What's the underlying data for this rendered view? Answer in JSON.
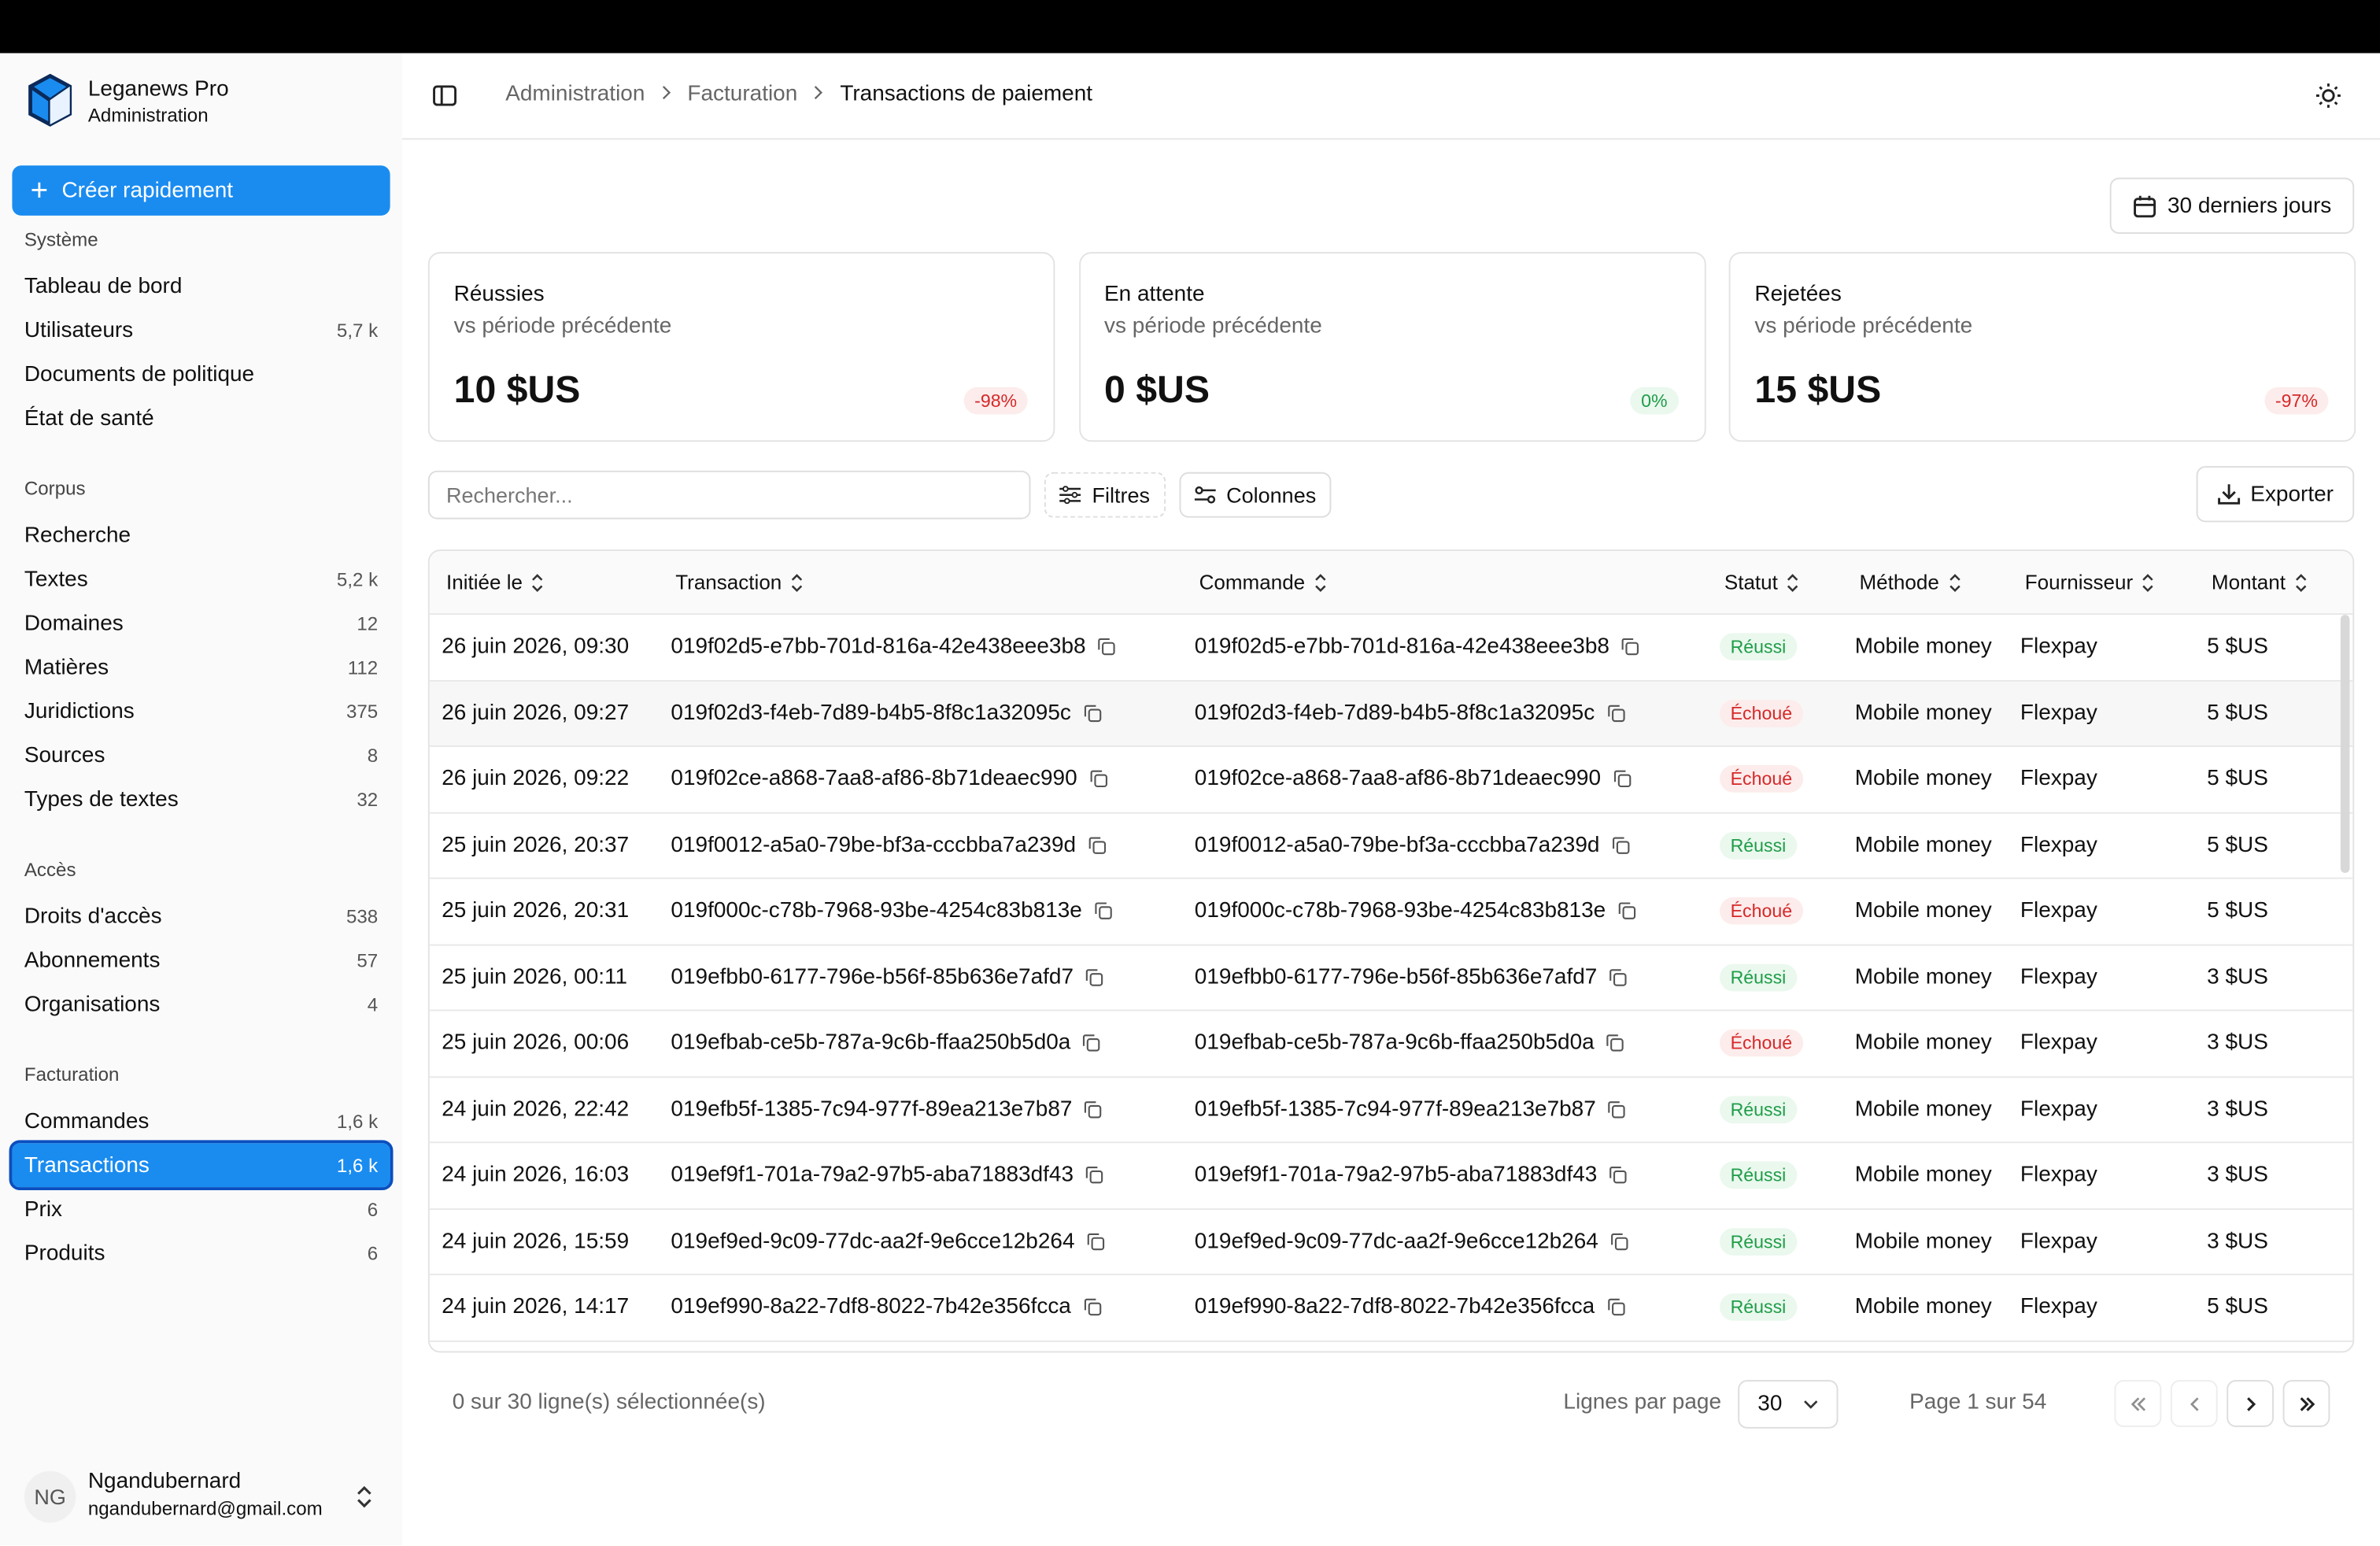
{
  "app": {
    "name": "Leganews Pro",
    "subtitle": "Administration"
  },
  "quick_create": "Créer rapidement",
  "nav": [
    {
      "section": "Système",
      "items": [
        {
          "label": "Tableau de bord"
        },
        {
          "label": "Utilisateurs",
          "count": "5,7 k"
        },
        {
          "label": "Documents de politique"
        },
        {
          "label": "État de santé"
        }
      ]
    },
    {
      "section": "Corpus",
      "items": [
        {
          "label": "Recherche"
        },
        {
          "label": "Textes",
          "count": "5,2 k"
        },
        {
          "label": "Domaines",
          "count": "12"
        },
        {
          "label": "Matières",
          "count": "112"
        },
        {
          "label": "Juridictions",
          "count": "375"
        },
        {
          "label": "Sources",
          "count": "8"
        },
        {
          "label": "Types de textes",
          "count": "32"
        }
      ]
    },
    {
      "section": "Accès",
      "items": [
        {
          "label": "Droits d'accès",
          "count": "538"
        },
        {
          "label": "Abonnements",
          "count": "57"
        },
        {
          "label": "Organisations",
          "count": "4"
        }
      ]
    },
    {
      "section": "Facturation",
      "items": [
        {
          "label": "Commandes",
          "count": "1,6 k"
        },
        {
          "label": "Transactions",
          "count": "1,6 k",
          "active": true
        },
        {
          "label": "Prix",
          "count": "6"
        },
        {
          "label": "Produits",
          "count": "6"
        }
      ]
    }
  ],
  "user": {
    "initials": "NG",
    "name": "Ngandubernard",
    "email": "ngandubernard@gmail.com"
  },
  "breadcrumb": [
    "Administration",
    "Facturation",
    "Transactions de paiement"
  ],
  "date_range": "30 derniers jours",
  "cards": [
    {
      "title": "Réussies",
      "subtitle": "vs période précédente",
      "value": "10 $US",
      "change": "-98%",
      "tone": "danger"
    },
    {
      "title": "En attente",
      "subtitle": "vs période précédente",
      "value": "0 $US",
      "change": "0%",
      "tone": "success"
    },
    {
      "title": "Rejetées",
      "subtitle": "vs période précédente",
      "value": "15 $US",
      "change": "-97%",
      "tone": "danger"
    }
  ],
  "search_placeholder": "Rechercher...",
  "buttons": {
    "filters": "Filtres",
    "columns": "Colonnes",
    "export": "Exporter"
  },
  "table": {
    "columns": [
      "Initiée le",
      "Transaction",
      "Commande",
      "Statut",
      "Méthode",
      "Fournisseur",
      "Montant"
    ],
    "rows": [
      [
        "26 juin 2026, 09:30",
        "019f02d5-e7bb-701d-816a-42e438eee3b8",
        "019f02d5-e7bb-701d-816a-42e438eee3b8",
        {
          "label": "Réussi",
          "tone": "success"
        },
        "Mobile money",
        "Flexpay",
        "5 $US"
      ],
      [
        "26 juin 2026, 09:27",
        "019f02d3-f4eb-7d89-b4b5-8f8c1a32095c",
        "019f02d3-f4eb-7d89-b4b5-8f8c1a32095c",
        {
          "label": "Échoué",
          "tone": "danger"
        },
        "Mobile money",
        "Flexpay",
        "5 $US"
      ],
      [
        "26 juin 2026, 09:22",
        "019f02ce-a868-7aa8-af86-8b71deaec990",
        "019f02ce-a868-7aa8-af86-8b71deaec990",
        {
          "label": "Échoué",
          "tone": "danger"
        },
        "Mobile money",
        "Flexpay",
        "5 $US"
      ],
      [
        "25 juin 2026, 20:37",
        "019f0012-a5a0-79be-bf3a-cccbba7a239d",
        "019f0012-a5a0-79be-bf3a-cccbba7a239d",
        {
          "label": "Réussi",
          "tone": "success"
        },
        "Mobile money",
        "Flexpay",
        "5 $US"
      ],
      [
        "25 juin 2026, 20:31",
        "019f000c-c78b-7968-93be-4254c83b813e",
        "019f000c-c78b-7968-93be-4254c83b813e",
        {
          "label": "Échoué",
          "tone": "danger"
        },
        "Mobile money",
        "Flexpay",
        "5 $US"
      ],
      [
        "25 juin 2026, 00:11",
        "019efbb0-6177-796e-b56f-85b636e7afd7",
        "019efbb0-6177-796e-b56f-85b636e7afd7",
        {
          "label": "Réussi",
          "tone": "success"
        },
        "Mobile money",
        "Flexpay",
        "3 $US"
      ],
      [
        "25 juin 2026, 00:06",
        "019efbab-ce5b-787a-9c6b-ffaa250b5d0a",
        "019efbab-ce5b-787a-9c6b-ffaa250b5d0a",
        {
          "label": "Échoué",
          "tone": "danger"
        },
        "Mobile money",
        "Flexpay",
        "3 $US"
      ],
      [
        "24 juin 2026, 22:42",
        "019efb5f-1385-7c94-977f-89ea213e7b87",
        "019efb5f-1385-7c94-977f-89ea213e7b87",
        {
          "label": "Réussi",
          "tone": "success"
        },
        "Mobile money",
        "Flexpay",
        "3 $US"
      ],
      [
        "24 juin 2026, 16:03",
        "019ef9f1-701a-79a2-97b5-aba71883df43",
        "019ef9f1-701a-79a2-97b5-aba71883df43",
        {
          "label": "Réussi",
          "tone": "success"
        },
        "Mobile money",
        "Flexpay",
        "3 $US"
      ],
      [
        "24 juin 2026, 15:59",
        "019ef9ed-9c09-77dc-aa2f-9e6cce12b264",
        "019ef9ed-9c09-77dc-aa2f-9e6cce12b264",
        {
          "label": "Réussi",
          "tone": "success"
        },
        "Mobile money",
        "Flexpay",
        "3 $US"
      ],
      [
        "24 juin 2026, 14:17",
        "019ef990-8a22-7df8-8022-7b42e356fcca",
        "019ef990-8a22-7df8-8022-7b42e356fcca",
        {
          "label": "Réussi",
          "tone": "success"
        },
        "Mobile money",
        "Flexpay",
        "5 $US"
      ]
    ]
  },
  "footer": {
    "selection": "0 sur 30 ligne(s) sélectionnée(s)",
    "rows_per_page_label": "Lignes par page",
    "rows_per_page": "30",
    "page": "Page 1 sur 54"
  }
}
